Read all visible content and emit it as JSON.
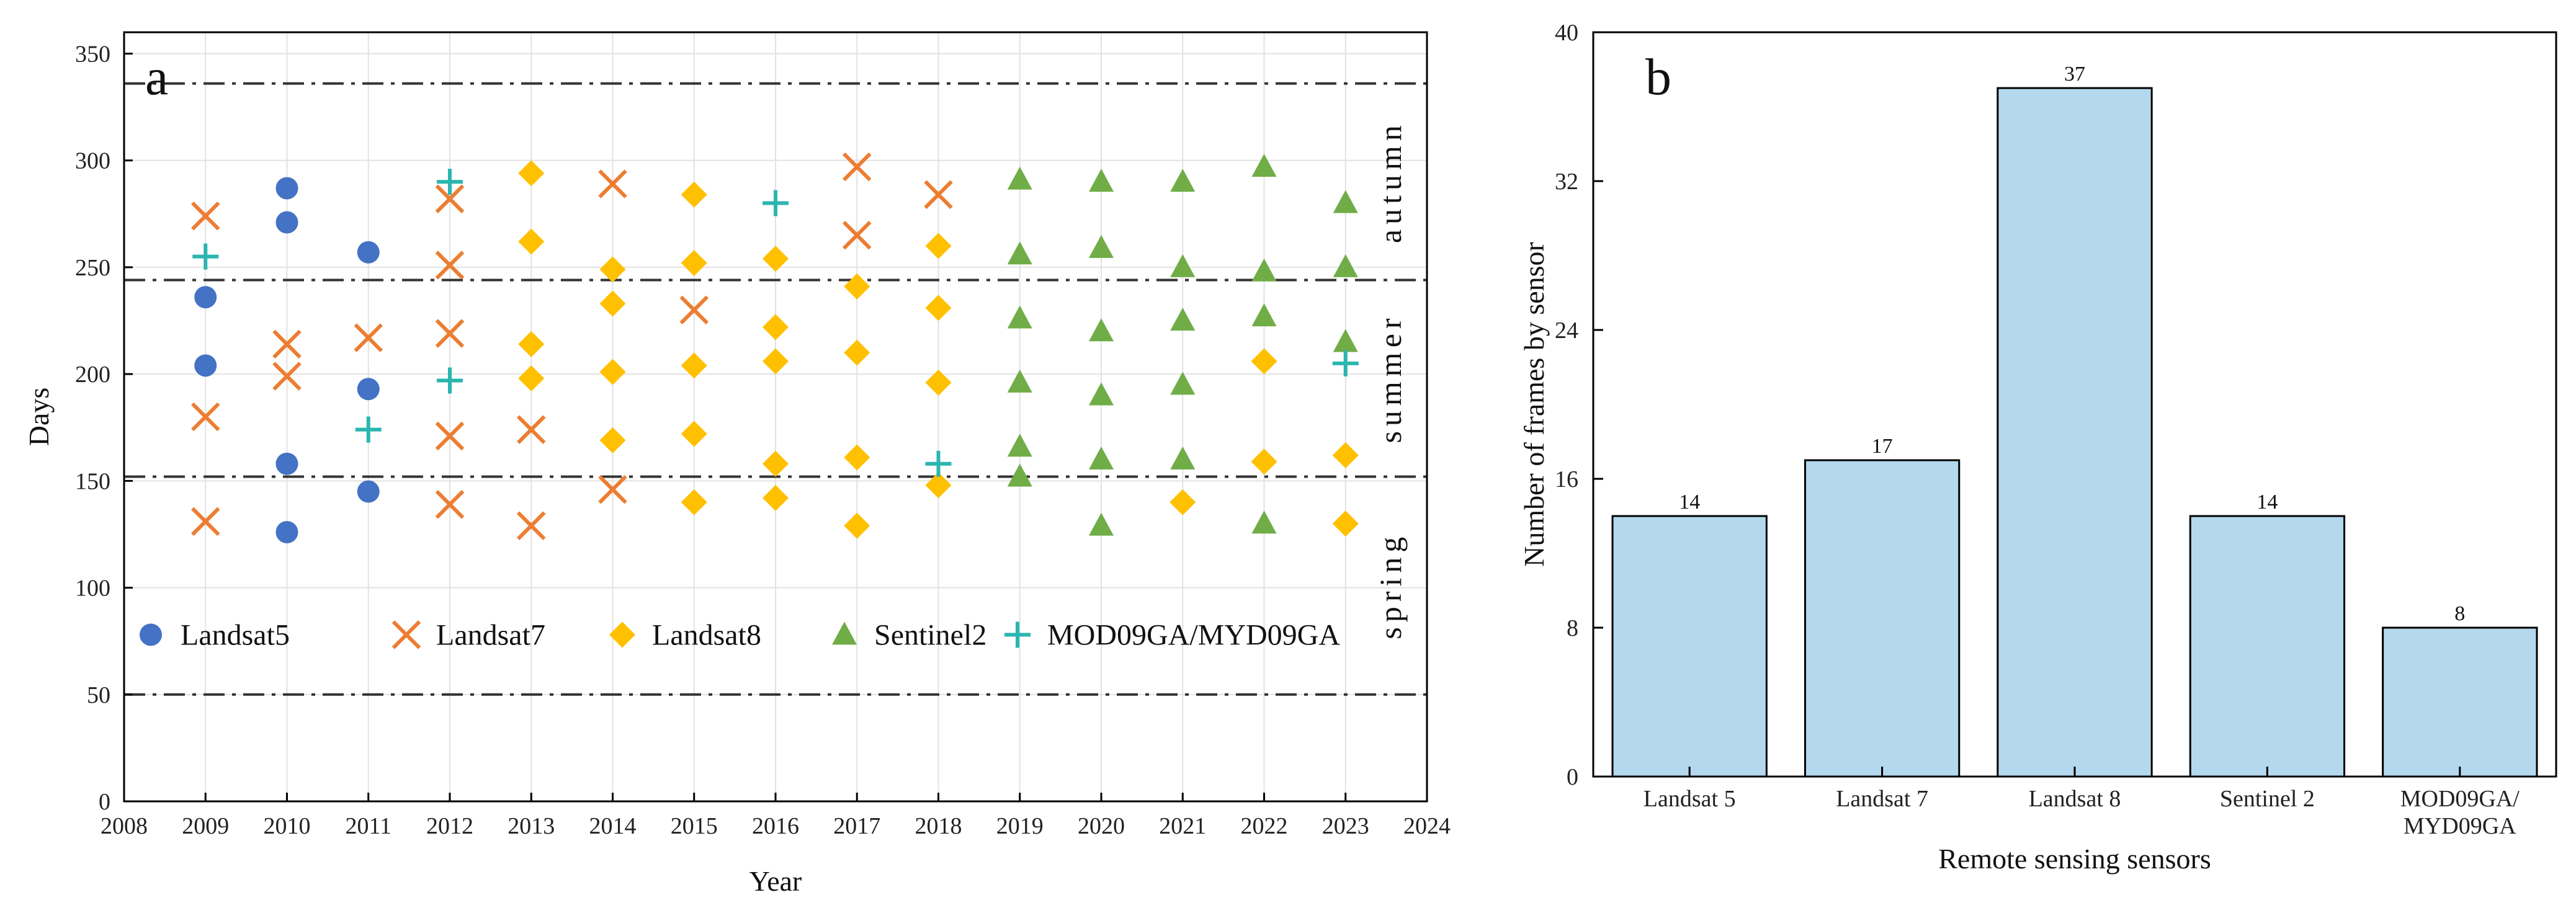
{
  "chart_data": [
    {
      "type": "scatter",
      "panel_label": "a",
      "title": "",
      "xlabel": "Year",
      "ylabel": "Days",
      "xlim": [
        2008,
        2024
      ],
      "ylim": [
        0,
        360
      ],
      "x_ticks": [
        2008,
        2009,
        2010,
        2011,
        2012,
        2013,
        2014,
        2015,
        2016,
        2017,
        2018,
        2019,
        2020,
        2021,
        2022,
        2023,
        2024
      ],
      "y_ticks": [
        0,
        50,
        100,
        150,
        200,
        250,
        300,
        350
      ],
      "grid": true,
      "reference_lines": [
        50,
        152,
        244,
        336
      ],
      "season_labels": [
        {
          "text": "spring",
          "from": 50,
          "to": 152
        },
        {
          "text": "summer",
          "from": 152,
          "to": 244
        },
        {
          "text": "autumn",
          "from": 244,
          "to": 336
        }
      ],
      "legend_position": "bottom",
      "series": [
        {
          "name": "Landsat5",
          "marker": "circle",
          "color": "#4472C4",
          "points": [
            [
              2009,
              236
            ],
            [
              2009,
              204
            ],
            [
              2010,
              287
            ],
            [
              2010,
              271
            ],
            [
              2010,
              158
            ],
            [
              2010,
              126
            ],
            [
              2011,
              257
            ],
            [
              2011,
              193
            ],
            [
              2011,
              145
            ]
          ]
        },
        {
          "name": "Landsat7",
          "marker": "x",
          "color": "#ED7D31",
          "points": [
            [
              2009,
              274
            ],
            [
              2009,
              180
            ],
            [
              2009,
              131
            ],
            [
              2010,
              214
            ],
            [
              2010,
              199
            ],
            [
              2011,
              217
            ],
            [
              2012,
              282
            ],
            [
              2012,
              251
            ],
            [
              2012,
              219
            ],
            [
              2012,
              171
            ],
            [
              2012,
              139
            ],
            [
              2013,
              174
            ],
            [
              2013,
              129
            ],
            [
              2014,
              289
            ],
            [
              2014,
              146
            ],
            [
              2015,
              230
            ],
            [
              2017,
              297
            ],
            [
              2017,
              265
            ],
            [
              2018,
              284
            ]
          ]
        },
        {
          "name": "Landsat8",
          "marker": "diamond",
          "color": "#FFC000",
          "points": [
            [
              2013,
              294
            ],
            [
              2013,
              262
            ],
            [
              2013,
              214
            ],
            [
              2013,
              198
            ],
            [
              2014,
              249
            ],
            [
              2014,
              233
            ],
            [
              2014,
              201
            ],
            [
              2014,
              169
            ],
            [
              2015,
              284
            ],
            [
              2015,
              252
            ],
            [
              2015,
              204
            ],
            [
              2015,
              172
            ],
            [
              2015,
              140
            ],
            [
              2016,
              254
            ],
            [
              2016,
              222
            ],
            [
              2016,
              206
            ],
            [
              2016,
              158
            ],
            [
              2016,
              142
            ],
            [
              2017,
              241
            ],
            [
              2017,
              210
            ],
            [
              2017,
              161
            ],
            [
              2017,
              129
            ],
            [
              2018,
              260
            ],
            [
              2018,
              231
            ],
            [
              2018,
              196
            ],
            [
              2018,
              148
            ],
            [
              2021,
              140
            ],
            [
              2022,
              206
            ],
            [
              2022,
              159
            ],
            [
              2023,
              162
            ],
            [
              2023,
              130
            ]
          ]
        },
        {
          "name": "Sentinel2",
          "marker": "triangle",
          "color": "#70AD47",
          "points": [
            [
              2019,
              291
            ],
            [
              2019,
              256
            ],
            [
              2019,
              226
            ],
            [
              2019,
              196
            ],
            [
              2019,
              166
            ],
            [
              2019,
              152
            ],
            [
              2020,
              290
            ],
            [
              2020,
              259
            ],
            [
              2020,
              220
            ],
            [
              2020,
              190
            ],
            [
              2020,
              160
            ],
            [
              2020,
              129
            ],
            [
              2021,
              290
            ],
            [
              2021,
              250
            ],
            [
              2021,
              225
            ],
            [
              2021,
              195
            ],
            [
              2021,
              160
            ],
            [
              2022,
              297
            ],
            [
              2022,
              248
            ],
            [
              2022,
              227
            ],
            [
              2022,
              130
            ],
            [
              2023,
              280
            ],
            [
              2023,
              250
            ],
            [
              2023,
              215
            ]
          ]
        },
        {
          "name": "MOD09GA/MYD09GA",
          "marker": "plus",
          "color": "#2BB5B0",
          "points": [
            [
              2009,
              255
            ],
            [
              2011,
              174
            ],
            [
              2012,
              290
            ],
            [
              2012,
              197
            ],
            [
              2016,
              280
            ],
            [
              2018,
              158
            ],
            [
              2023,
              205
            ]
          ]
        }
      ]
    },
    {
      "type": "bar",
      "panel_label": "b",
      "title": "",
      "xlabel": "Remote sensing sensors",
      "ylabel": "Number of frames by sensor",
      "categories": [
        "Landsat 5",
        "Landsat 7",
        "Landsat 8",
        "Sentinel 2",
        "MOD09GA/\nMYD09GA"
      ],
      "values": [
        14,
        17,
        37,
        14,
        8
      ],
      "data_labels": [
        "14",
        "17",
        "37",
        "14",
        "8"
      ],
      "ylim": [
        0,
        40
      ],
      "y_ticks": [
        0,
        8,
        16,
        24,
        32,
        40
      ],
      "bar_color": "#B4D8EE",
      "bar_edge_color": "#000000",
      "grid": false
    }
  ]
}
